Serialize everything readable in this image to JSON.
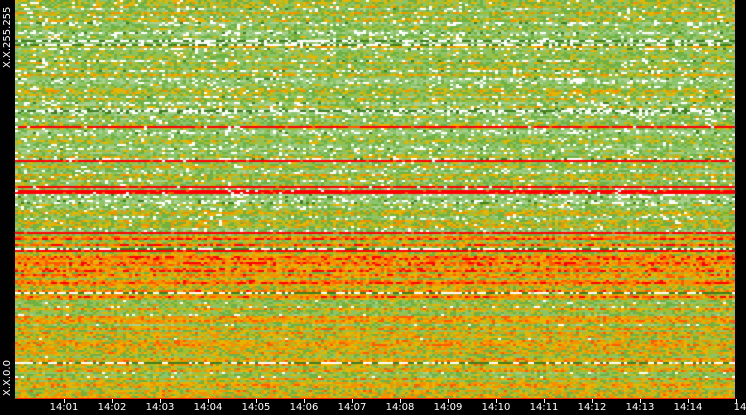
{
  "y_axis": {
    "top_label": "X.X.255.255",
    "bottom_label": "X.X.0.0"
  },
  "x_axis": {
    "ticks": [
      "14:01",
      "14:02",
      "14:03",
      "14:04",
      "14:05",
      "14:06",
      "14:07",
      "14:08",
      "14:09",
      "14:10",
      "14:11",
      "14:12",
      "14:13",
      "14:14",
      "14"
    ]
  },
  "colors": {
    "palette": [
      "#ffffff",
      "#a9d08e",
      "#8cc46b",
      "#6fb143",
      "#3f7d1e",
      "#a6bd2c",
      "#e8b400",
      "#f39200",
      "#ff5a00",
      "#ff0000"
    ],
    "background": "#000000"
  }
}
